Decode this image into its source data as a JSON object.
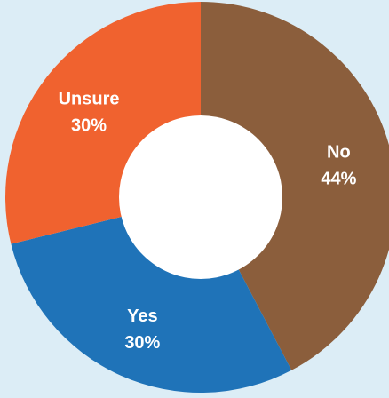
{
  "chart_data": {
    "type": "pie",
    "categories": [
      "No",
      "Yes",
      "Unsure"
    ],
    "values": [
      44,
      30,
      30
    ],
    "value_labels": [
      "44%",
      "30%",
      "30%"
    ],
    "colors": [
      "#8b5e3c",
      "#1f73b8",
      "#f0622f"
    ],
    "background": "#dcedf6",
    "center_color": "#ffffff",
    "donut": true
  }
}
